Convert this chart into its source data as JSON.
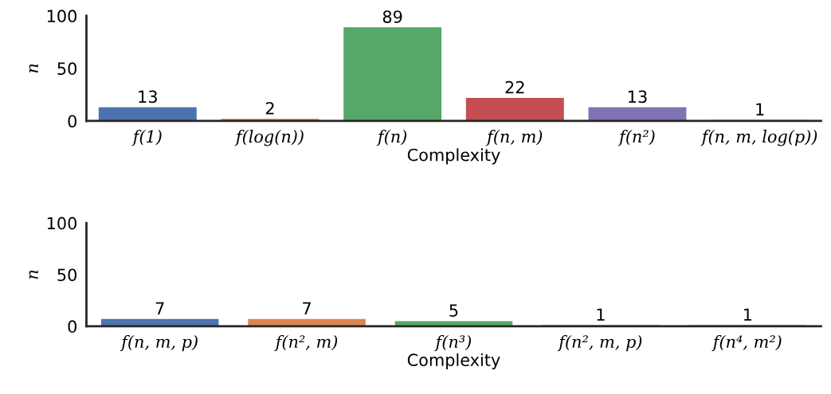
{
  "chart_data": [
    {
      "type": "bar",
      "xlabel": "Complexity",
      "ylabel": "n",
      "categories": [
        "f(1)",
        "f(log(n))",
        "f(n)",
        "f(n, m)",
        "f(n²)",
        "f(n, m, log(p))"
      ],
      "values": [
        13,
        2,
        89,
        22,
        13,
        1
      ],
      "colors": [
        "#4c72b0",
        "#dd8452",
        "#55a868",
        "#c44e52",
        "#8172b3",
        "#937860"
      ],
      "ylim": [
        0,
        100
      ],
      "yticks": [
        0,
        50,
        100
      ],
      "data_labels": true,
      "grid": false,
      "legend": false
    },
    {
      "type": "bar",
      "xlabel": "Complexity",
      "ylabel": "n",
      "categories": [
        "f(n, m, p)",
        "f(n², m)",
        "f(n³)",
        "f(n², m, p)",
        "f(n⁴, m²)"
      ],
      "values": [
        7,
        7,
        5,
        1,
        1
      ],
      "colors": [
        "#4c72b0",
        "#dd8452",
        "#55a868",
        "#c44e52",
        "#8172b3"
      ],
      "ylim": [
        0,
        100
      ],
      "yticks": [
        0,
        50,
        100
      ],
      "data_labels": true,
      "grid": false,
      "legend": false
    }
  ]
}
